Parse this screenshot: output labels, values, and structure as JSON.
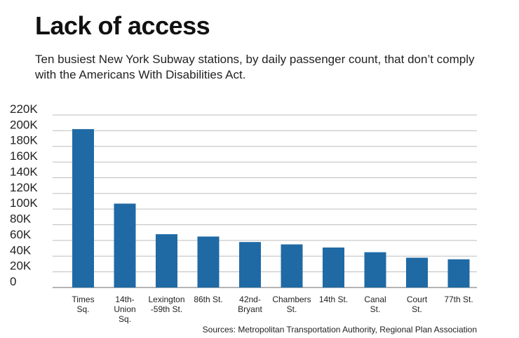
{
  "header": {
    "title": "Lack of access",
    "subtitle": "Ten busiest New York Subway stations, by daily passenger count, that don’t comply with the Americans With Disabilities Act."
  },
  "footer": {
    "source": "Sources: Metropolitan Transportation Authority, Regional Plan Association"
  },
  "chart_data": {
    "type": "bar",
    "title": "Lack of access",
    "subtitle": "Ten busiest New York Subway stations, by daily passenger count, that don’t comply with the Americans With Disabilities Act.",
    "xlabel": "",
    "ylabel": "",
    "ylim": [
      0,
      220000
    ],
    "yticks": [
      0,
      20000,
      40000,
      60000,
      80000,
      100000,
      120000,
      140000,
      160000,
      180000,
      200000,
      220000
    ],
    "ytick_labels": [
      "0",
      "20K",
      "40K",
      "60K",
      "80K",
      "100K",
      "120K",
      "140K",
      "160K",
      "180K",
      "200K",
      "220K"
    ],
    "grid": true,
    "bar_color": "#1f6aa5",
    "categories": [
      [
        "Times",
        "Sq."
      ],
      [
        "14th-",
        "Union",
        "Sq."
      ],
      [
        "Lexington",
        "-59th St."
      ],
      [
        "86th St."
      ],
      [
        "42nd-",
        "Bryant"
      ],
      [
        "Chambers",
        "St."
      ],
      [
        "14th St."
      ],
      [
        "Canal",
        "St."
      ],
      [
        "Court",
        "St."
      ],
      [
        "77th St."
      ]
    ],
    "values": [
      202000,
      107000,
      68000,
      65000,
      58000,
      55000,
      51000,
      45000,
      38000,
      36000
    ]
  }
}
